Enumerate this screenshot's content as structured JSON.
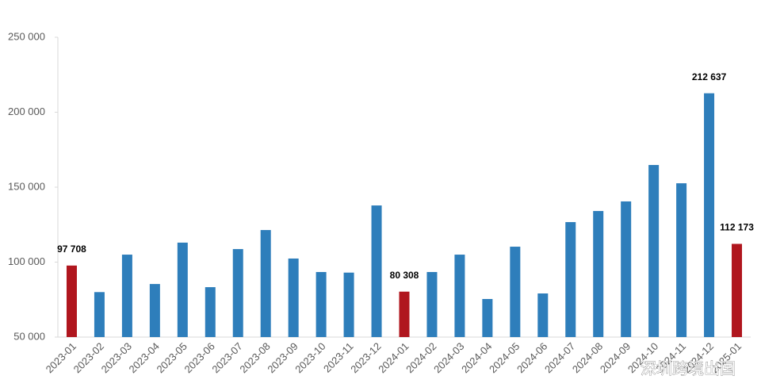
{
  "chart_data": {
    "type": "bar",
    "categories": [
      "2023-01",
      "2023-02",
      "2023-03",
      "2023-04",
      "2023-05",
      "2023-06",
      "2023-07",
      "2023-08",
      "2023-09",
      "2023-10",
      "2023-11",
      "2023-12",
      "2024-01",
      "2024-02",
      "2024-03",
      "2024-04",
      "2024-05",
      "2024-06",
      "2024-07",
      "2024-08",
      "2024-09",
      "2024-10",
      "2024-11",
      "2024-12",
      "2025-01"
    ],
    "values": [
      97708,
      80000,
      105000,
      85400,
      113000,
      83300,
      108700,
      121400,
      102400,
      93400,
      93000,
      137800,
      80308,
      93400,
      105000,
      75400,
      110300,
      79100,
      126700,
      134100,
      140500,
      164800,
      152600,
      212637,
      112173
    ],
    "value_labels": [
      "97 708",
      null,
      null,
      null,
      null,
      null,
      null,
      null,
      null,
      null,
      null,
      null,
      "80 308",
      null,
      null,
      null,
      null,
      null,
      null,
      null,
      null,
      null,
      null,
      "212 637",
      "112 173"
    ],
    "colors": [
      "#b0161e",
      "#2e7ebb",
      "#2e7ebb",
      "#2e7ebb",
      "#2e7ebb",
      "#2e7ebb",
      "#2e7ebb",
      "#2e7ebb",
      "#2e7ebb",
      "#2e7ebb",
      "#2e7ebb",
      "#2e7ebb",
      "#b0161e",
      "#2e7ebb",
      "#2e7ebb",
      "#2e7ebb",
      "#2e7ebb",
      "#2e7ebb",
      "#2e7ebb",
      "#2e7ebb",
      "#2e7ebb",
      "#2e7ebb",
      "#2e7ebb",
      "#2e7ebb",
      "#b0161e"
    ],
    "ylim": [
      50000,
      250000
    ],
    "yticks": [
      {
        "value": 50000,
        "label": "50 000"
      },
      {
        "value": 100000,
        "label": "100 000"
      },
      {
        "value": 150000,
        "label": "150 000"
      },
      {
        "value": 200000,
        "label": "200 000"
      },
      {
        "value": 250000,
        "label": "250 000"
      }
    ],
    "grid": false
  },
  "watermark": "深圳跨境出国"
}
